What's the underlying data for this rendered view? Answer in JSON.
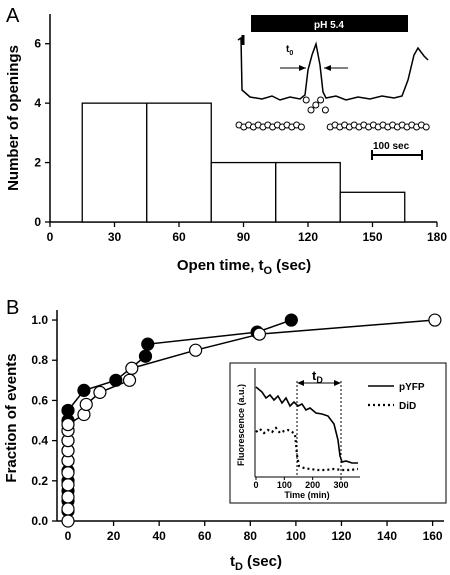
{
  "chart_data": [
    {
      "panel": "A",
      "type": "bar",
      "xlabel": "Open time, t",
      "xlabel_sub": "O",
      "xlabel_unit": "(sec)",
      "ylabel": "Number of openings",
      "xlim": [
        0,
        180
      ],
      "ylim": [
        0,
        7
      ],
      "x_ticks": [
        0,
        30,
        60,
        90,
        120,
        150,
        180
      ],
      "y_ticks": [
        0,
        2,
        4,
        6
      ],
      "bins": [
        {
          "start": 15,
          "end": 45,
          "count": 4
        },
        {
          "start": 45,
          "end": 75,
          "count": 4
        },
        {
          "start": 75,
          "end": 105,
          "count": 2
        },
        {
          "start": 105,
          "end": 135,
          "count": 2
        },
        {
          "start": 135,
          "end": 165,
          "count": 1
        }
      ],
      "inset": {
        "bar_label": "pH 5.4",
        "t_label": "t",
        "t_sub": "0",
        "scale_label": "100 sec"
      }
    },
    {
      "panel": "B",
      "type": "line",
      "xlabel": "t",
      "xlabel_sub": "D",
      "xlabel_unit": "(sec)",
      "ylabel": "Fraction of events",
      "xlim": [
        0,
        165
      ],
      "ylim": [
        0,
        1.05
      ],
      "x_ticks": [
        0,
        20,
        40,
        60,
        80,
        100,
        120,
        140,
        160
      ],
      "y_ticks": [
        0.0,
        0.2,
        0.4,
        0.6,
        0.8,
        1.0
      ],
      "series": [
        {
          "marker": "filled",
          "x": [
            0,
            0,
            0,
            0,
            0,
            0,
            0,
            0,
            0,
            0,
            0,
            7,
            21,
            34,
            35,
            83,
            98
          ],
          "y": [
            0.05,
            0.1,
            0.15,
            0.2,
            0.25,
            0.3,
            0.35,
            0.4,
            0.45,
            0.5,
            0.55,
            0.65,
            0.7,
            0.82,
            0.88,
            0.94,
            1.0
          ]
        },
        {
          "marker": "open",
          "x": [
            0,
            0,
            0,
            0,
            0,
            0,
            0,
            0,
            0,
            0,
            7,
            8,
            14,
            27,
            28,
            56,
            84,
            161
          ],
          "y": [
            0.0,
            0.06,
            0.12,
            0.18,
            0.24,
            0.3,
            0.35,
            0.4,
            0.45,
            0.48,
            0.53,
            0.58,
            0.64,
            0.7,
            0.76,
            0.85,
            0.93,
            1.0
          ]
        }
      ],
      "inset": {
        "xlabel": "Time (min)",
        "ylabel": "Fluorescence (a.u.)",
        "x_ticks": [
          0,
          100,
          200,
          300
        ],
        "t_label": "t",
        "t_sub": "D",
        "legend": [
          {
            "label": "pYFP",
            "style": "solid"
          },
          {
            "label": "DiD",
            "style": "dotted"
          }
        ]
      }
    }
  ]
}
